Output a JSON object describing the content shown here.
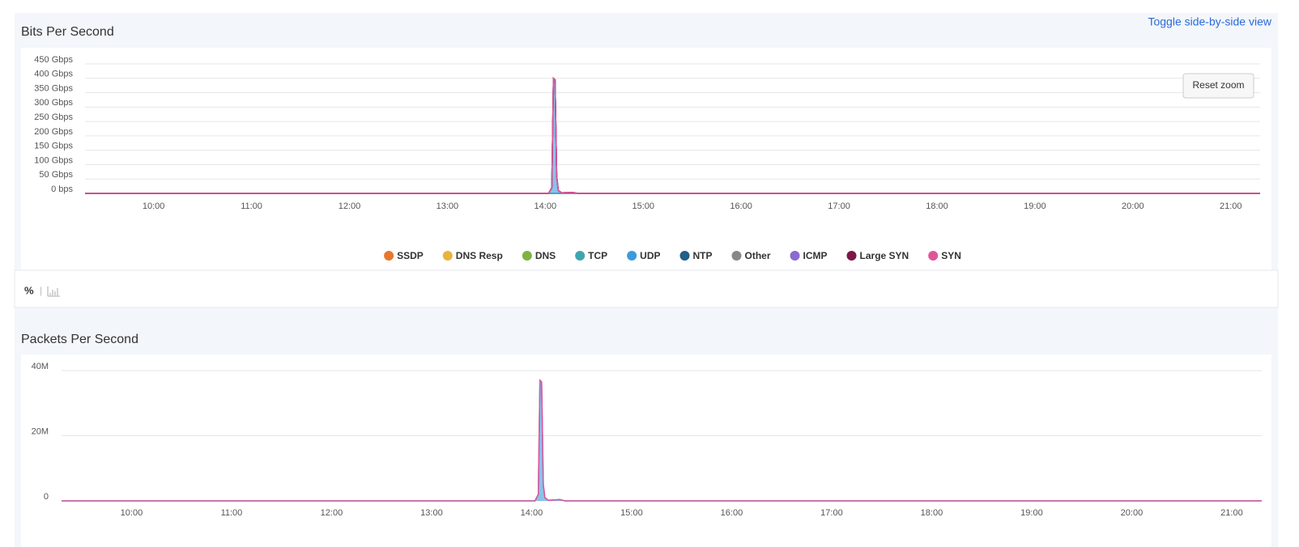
{
  "ui": {
    "toggle_link": "Toggle side-by-side view",
    "reset_zoom": "Reset zoom",
    "percent_toggle": "%"
  },
  "chart_data": [
    {
      "type": "area",
      "title": "Bits Per Second",
      "legend": "bottom",
      "grid": true,
      "x": [
        "09:18",
        "14:02",
        "14:04",
        "14:05",
        "14:06",
        "14:07",
        "14:08",
        "14:10",
        "14:17",
        "14:20",
        "21:18"
      ],
      "xlim": [
        "09:18",
        "21:18"
      ],
      "xticks": [
        "10:00",
        "11:00",
        "12:00",
        "13:00",
        "14:00",
        "15:00",
        "16:00",
        "17:00",
        "18:00",
        "19:00",
        "20:00",
        "21:00"
      ],
      "ylim": [
        0,
        450
      ],
      "yticks": [
        {
          "value": 0,
          "label": "0 bps"
        },
        {
          "value": 50,
          "label": "50 Gbps"
        },
        {
          "value": 100,
          "label": "100 Gbps"
        },
        {
          "value": 150,
          "label": "150 Gbps"
        },
        {
          "value": 200,
          "label": "200 Gbps"
        },
        {
          "value": 250,
          "label": "250 Gbps"
        },
        {
          "value": 300,
          "label": "300 Gbps"
        },
        {
          "value": 350,
          "label": "350 Gbps"
        },
        {
          "value": 400,
          "label": "400 Gbps"
        },
        {
          "value": 450,
          "label": "450 Gbps"
        }
      ],
      "series": [
        {
          "name": "SSDP",
          "color": "#e8772e",
          "values": [
            0,
            0,
            0,
            0,
            0,
            0,
            0,
            0,
            0,
            0,
            0
          ]
        },
        {
          "name": "DNS Resp",
          "color": "#e8b43c",
          "values": [
            0,
            0,
            0,
            0,
            0,
            0,
            0,
            0,
            0,
            0,
            0
          ]
        },
        {
          "name": "DNS",
          "color": "#7cb342",
          "values": [
            0,
            0,
            0,
            0,
            0,
            0,
            0,
            0,
            0,
            0,
            0
          ]
        },
        {
          "name": "TCP",
          "color": "#3fa6b0",
          "values": [
            0,
            0,
            0,
            0,
            0,
            0,
            0,
            0,
            0,
            0,
            0
          ]
        },
        {
          "name": "UDP",
          "color": "#3a9bdc",
          "values": [
            0,
            0,
            20,
            400,
            395,
            60,
            10,
            2,
            3,
            0,
            0
          ]
        },
        {
          "name": "NTP",
          "color": "#1f5f8b",
          "values": [
            0,
            0,
            0,
            0,
            0,
            0,
            0,
            0,
            0,
            0,
            0
          ]
        },
        {
          "name": "Other",
          "color": "#888888",
          "values": [
            0,
            0,
            0,
            0,
            0,
            0,
            0,
            0,
            0,
            0,
            0
          ]
        },
        {
          "name": "ICMP",
          "color": "#8a6bd1",
          "values": [
            0,
            0,
            0,
            0,
            0,
            0,
            0,
            0,
            0,
            0,
            0
          ]
        },
        {
          "name": "Large SYN",
          "color": "#7b1846",
          "values": [
            0,
            0,
            0,
            0,
            0,
            0,
            0,
            0,
            0,
            0,
            0
          ]
        },
        {
          "name": "SYN",
          "color": "#e0559a",
          "values": [
            0,
            0,
            0,
            0,
            0,
            0,
            0,
            0,
            0,
            0,
            0
          ]
        }
      ]
    },
    {
      "type": "area",
      "title": "Packets Per Second",
      "grid": true,
      "x": [
        "09:18",
        "14:02",
        "14:04",
        "14:05",
        "14:06",
        "14:07",
        "14:08",
        "14:10",
        "14:17",
        "14:20",
        "21:18"
      ],
      "xlim": [
        "09:18",
        "21:18"
      ],
      "xticks": [
        "10:00",
        "11:00",
        "12:00",
        "13:00",
        "14:00",
        "15:00",
        "16:00",
        "17:00",
        "18:00",
        "19:00",
        "20:00",
        "21:00"
      ],
      "ylim": [
        0,
        40000000
      ],
      "yticks": [
        0,
        {
          "value": 20000000,
          "label": "20M"
        },
        {
          "value": 40000000,
          "label": "40M"
        }
      ],
      "series": [
        {
          "color": "#3a9bdc",
          "values": [
            0,
            0,
            2000000,
            37000000,
            36500000,
            5000000,
            1000000,
            200000,
            400000,
            0,
            0
          ]
        },
        {
          "color": "#e0559a",
          "values": [
            0,
            0,
            0,
            0,
            0,
            0,
            0,
            0,
            0,
            0,
            0
          ]
        }
      ]
    }
  ]
}
